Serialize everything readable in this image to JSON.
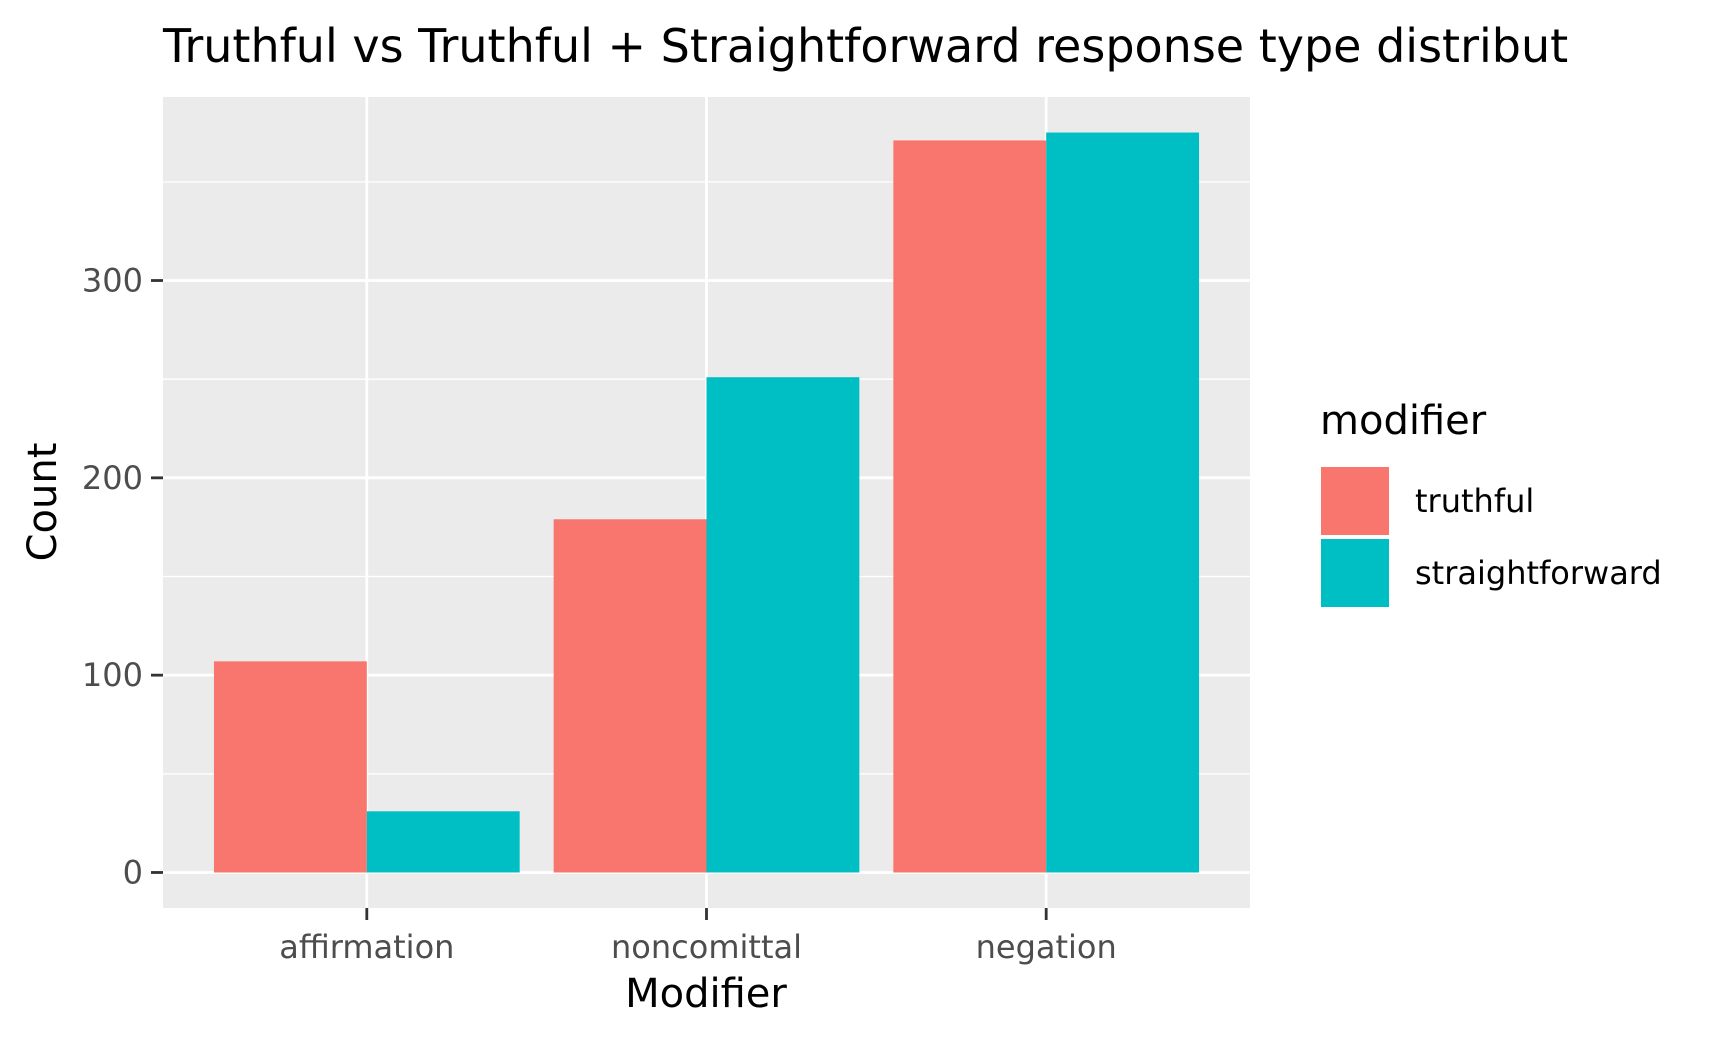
{
  "chart_data": {
    "type": "bar",
    "title": "Truthful vs Truthful + Straightforward response type distribut",
    "xlabel": "Modifier",
    "ylabel": "Count",
    "categories": [
      "affirmation",
      "noncomittal",
      "negation"
    ],
    "series": [
      {
        "name": "truthful",
        "color": "#F8766D",
        "values": [
          107,
          179,
          371
        ]
      },
      {
        "name": "straightforward",
        "color": "#00BFC4",
        "values": [
          31,
          251,
          375
        ]
      }
    ],
    "ylim": [
      -18,
      393
    ],
    "yticks": [
      0,
      100,
      200,
      300
    ],
    "grid": true,
    "legend": {
      "title": "modifier",
      "position": "right"
    },
    "panel_background": "#EBEBEB",
    "grid_color": "#FFFFFF"
  }
}
